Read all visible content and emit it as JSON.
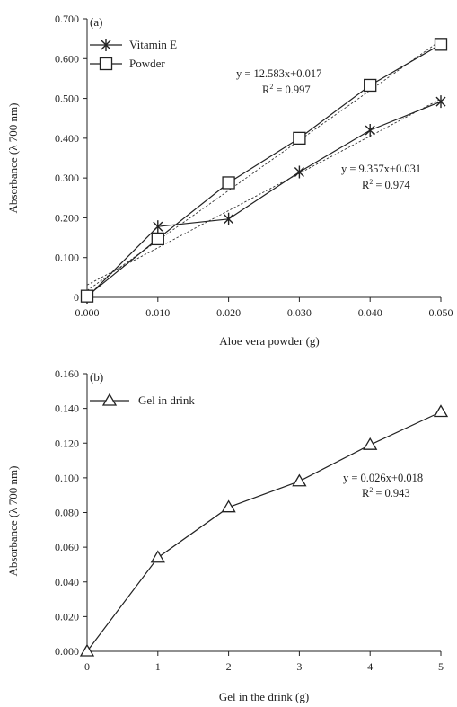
{
  "chart_data": [
    {
      "type": "line",
      "panel_label": "(a)",
      "xlabel": "Aloe vera powder (g)",
      "ylabel": "Absorbance (λ 700 nm)",
      "x": [
        0.0,
        0.01,
        0.02,
        0.03,
        0.04,
        0.05
      ],
      "xticks": [
        "0.000",
        "0.010",
        "0.020",
        "0.030",
        "0.040",
        "0.050"
      ],
      "xlim": [
        0,
        0.05
      ],
      "ylim": [
        0,
        0.7
      ],
      "yticks": [
        "0",
        "0.100",
        "0.200",
        "0.300",
        "0.400",
        "0.500",
        "0.600",
        "0.700"
      ],
      "series": [
        {
          "name": "Vitamin E",
          "marker": "asterisk",
          "values": [
            0.0,
            0.178,
            0.197,
            0.315,
            0.42,
            0.492
          ]
        },
        {
          "name": "Powder",
          "marker": "square",
          "values": [
            0.003,
            0.147,
            0.288,
            0.4,
            0.533,
            0.636
          ]
        }
      ],
      "trendlines": [
        {
          "series": "Vitamin E",
          "slope": 9.357,
          "intercept": 0.031,
          "equation": "y = 9.357x+0.031",
          "r2_prefix": "R",
          "r2_value": "= 0.974"
        },
        {
          "series": "Powder",
          "slope": 12.583,
          "intercept": 0.017,
          "equation": "y = 12.583x+0.017",
          "r2_prefix": "R",
          "r2_value": "= 0.997"
        }
      ],
      "legend": "top-left",
      "grid": false
    },
    {
      "type": "line",
      "panel_label": "(b)",
      "xlabel": "Gel in the drink (g)",
      "ylabel": "Absorbance (λ 700 nm)",
      "x": [
        0,
        1,
        2,
        3,
        4,
        5
      ],
      "xticks": [
        "0",
        "1",
        "2",
        "3",
        "4",
        "5"
      ],
      "xlim": [
        0,
        5
      ],
      "ylim": [
        0,
        0.16
      ],
      "yticks": [
        "0.000",
        "0.020",
        "0.040",
        "0.060",
        "0.080",
        "0.100",
        "0.120",
        "0.140",
        "0.160"
      ],
      "series": [
        {
          "name": "Gel in drink",
          "marker": "triangle",
          "values": [
            0.0,
            0.054,
            0.083,
            0.098,
            0.119,
            0.138
          ]
        }
      ],
      "trendlines": [
        {
          "series": "Gel in drink",
          "equation": "y = 0.026x+0.018",
          "r2_prefix": "R",
          "r2_value": "= 0.943"
        }
      ],
      "legend": "top-left",
      "grid": false
    }
  ]
}
